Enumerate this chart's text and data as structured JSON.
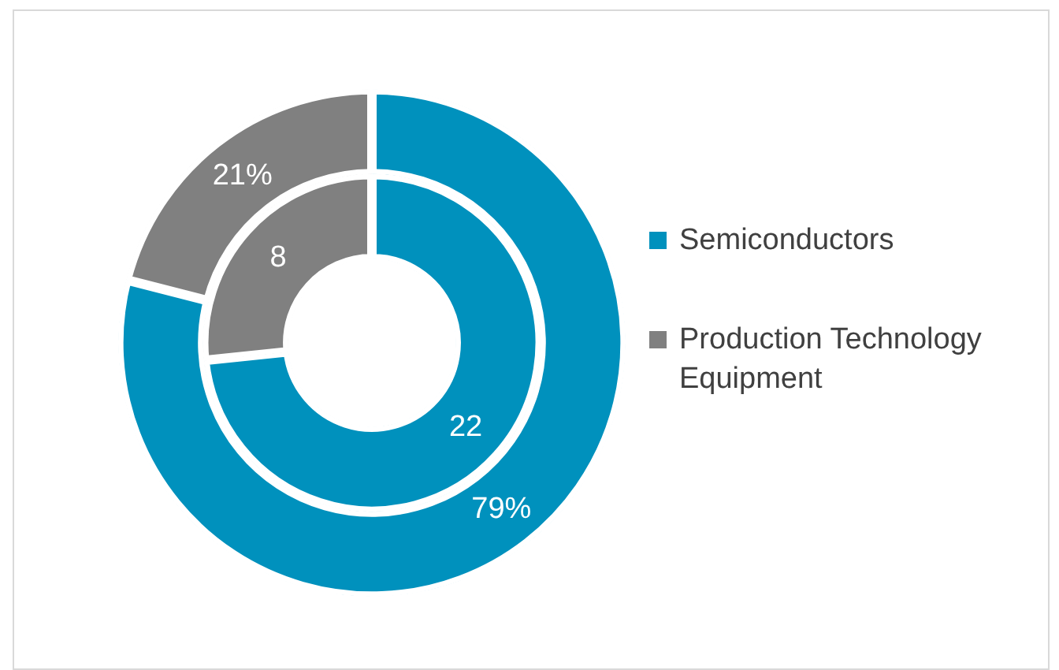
{
  "chart_data": {
    "type": "donut",
    "categories": [
      "Semiconductors",
      "Production Technology Equipment"
    ],
    "series": [
      {
        "values": [
          22,
          8
        ],
        "colors": [
          "#0091bd",
          "#808080"
        ],
        "value_labels": [
          "22",
          "8"
        ]
      },
      {
        "values": [
          79,
          21
        ],
        "colors": [
          "#0091bd",
          "#808080"
        ],
        "value_labels": [
          "79%",
          "21%"
        ]
      }
    ],
    "data_labels": true,
    "legend": "right"
  }
}
